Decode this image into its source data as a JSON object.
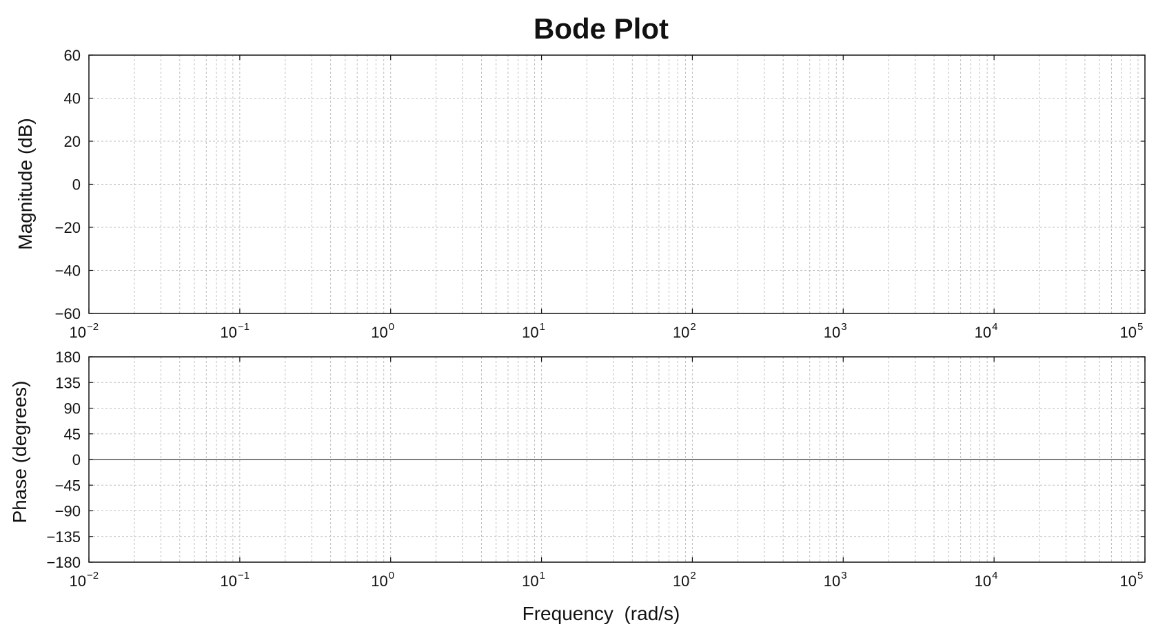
{
  "chart_data": [
    {
      "type": "line",
      "title": "Bode Plot",
      "panel": "magnitude",
      "ylabel": "Magnitude (dB)",
      "xscale": "log",
      "xlim": [
        0.01,
        100000
      ],
      "ylim": [
        -60,
        60
      ],
      "yticks": [
        60,
        40,
        20,
        0,
        -20,
        -40,
        -60
      ],
      "ytick_labels": [
        "60",
        "40",
        "20",
        "0",
        "−20",
        "−40",
        "−60"
      ],
      "xtick_labels": [
        {
          "base": "10",
          "exp": "−2"
        },
        {
          "base": "10",
          "exp": "−1"
        },
        {
          "base": "10",
          "exp": "0"
        },
        {
          "base": "10",
          "exp": "1"
        },
        {
          "base": "10",
          "exp": "2"
        },
        {
          "base": "10",
          "exp": "3"
        },
        {
          "base": "10",
          "exp": "4"
        },
        {
          "base": "10",
          "exp": "5"
        }
      ],
      "series": [],
      "grid": true
    },
    {
      "type": "line",
      "panel": "phase",
      "ylabel": "Phase (degrees)",
      "xlabel": "Frequency  (rad/s)",
      "xscale": "log",
      "xlim": [
        0.01,
        100000
      ],
      "ylim": [
        -180,
        180
      ],
      "yticks": [
        180,
        135,
        90,
        45,
        0,
        -45,
        -90,
        -135,
        -180
      ],
      "ytick_labels": [
        "180",
        "135",
        "90",
        "45",
        "0",
        "−45",
        "−90",
        "−135",
        "−180"
      ],
      "xtick_labels": [
        {
          "base": "10",
          "exp": "−2"
        },
        {
          "base": "10",
          "exp": "−1"
        },
        {
          "base": "10",
          "exp": "0"
        },
        {
          "base": "10",
          "exp": "1"
        },
        {
          "base": "10",
          "exp": "2"
        },
        {
          "base": "10",
          "exp": "3"
        },
        {
          "base": "10",
          "exp": "4"
        },
        {
          "base": "10",
          "exp": "5"
        }
      ],
      "series": [
        {
          "x": [
            0.01,
            100000
          ],
          "y": [
            0,
            0
          ]
        }
      ],
      "grid": true
    }
  ],
  "colors": {
    "frame": "#111111",
    "grid": "#bdbdbd",
    "zero_line": "#555555"
  }
}
